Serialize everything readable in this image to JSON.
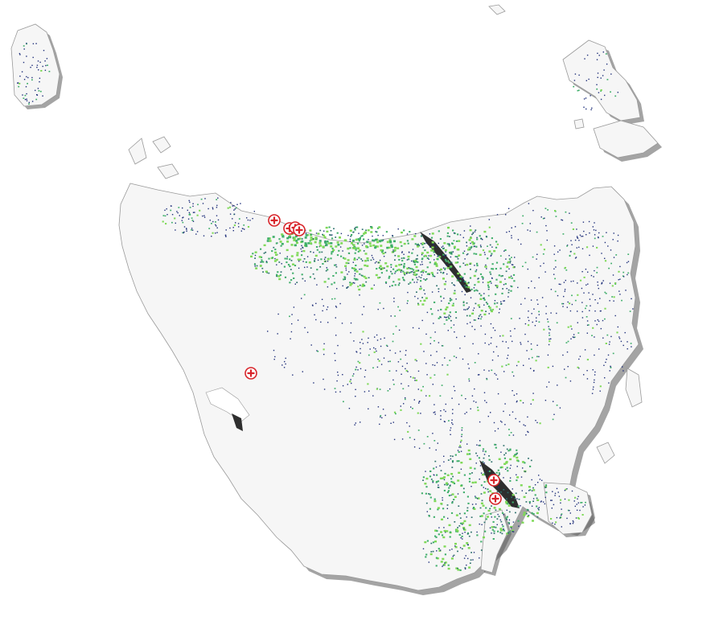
{
  "map": {
    "region": "Tasmania",
    "colors": {
      "land": "#f6f6f6",
      "coast_shadow": "#5a5a5a",
      "density_light": "#7ed957",
      "density_mid": "#3fae6a",
      "density_dark": "#2b6f6a",
      "density_dots": "#1f2f7a",
      "marker": "#d8242a"
    },
    "marker_icon": "hospital-cross-icon",
    "markers": [
      {
        "name": "hospital-marker-1"
      },
      {
        "name": "hospital-marker-2"
      },
      {
        "name": "hospital-marker-3"
      },
      {
        "name": "hospital-marker-4"
      },
      {
        "name": "hospital-marker-5"
      },
      {
        "name": "hospital-marker-6"
      },
      {
        "name": "hospital-marker-7"
      }
    ]
  }
}
